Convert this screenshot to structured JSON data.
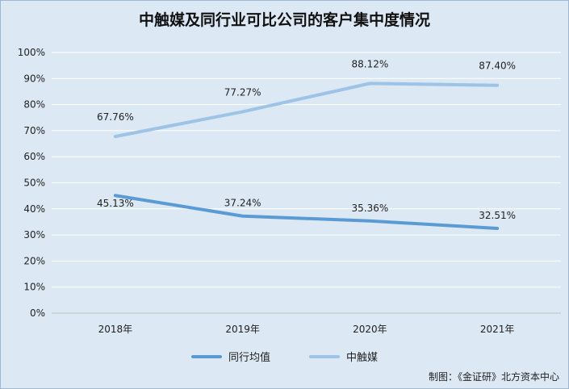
{
  "chart_data": {
    "type": "line",
    "title": "中触媒及同行业可比公司的客户集中度情况",
    "categories": [
      "2018年",
      "2019年",
      "2020年",
      "2021年"
    ],
    "ylim": [
      0,
      100
    ],
    "yticks": [
      "0%",
      "10%",
      "20%",
      "30%",
      "40%",
      "50%",
      "60%",
      "70%",
      "80%",
      "90%",
      "100%"
    ],
    "grid": true,
    "legend_position": "bottom",
    "series": [
      {
        "name": "同行均值",
        "values": [
          45.13,
          37.24,
          35.36,
          32.51
        ],
        "labels": [
          "45.13%",
          "37.24%",
          "35.36%",
          "32.51%"
        ],
        "color": "#5b9bd5"
      },
      {
        "name": "中触媒",
        "values": [
          67.76,
          77.27,
          88.12,
          87.4
        ],
        "labels": [
          "67.76%",
          "77.27%",
          "88.12%",
          "87.40%"
        ],
        "color": "#9dc3e6"
      }
    ]
  },
  "source_note": "制图：《金证研》北方资本中心"
}
